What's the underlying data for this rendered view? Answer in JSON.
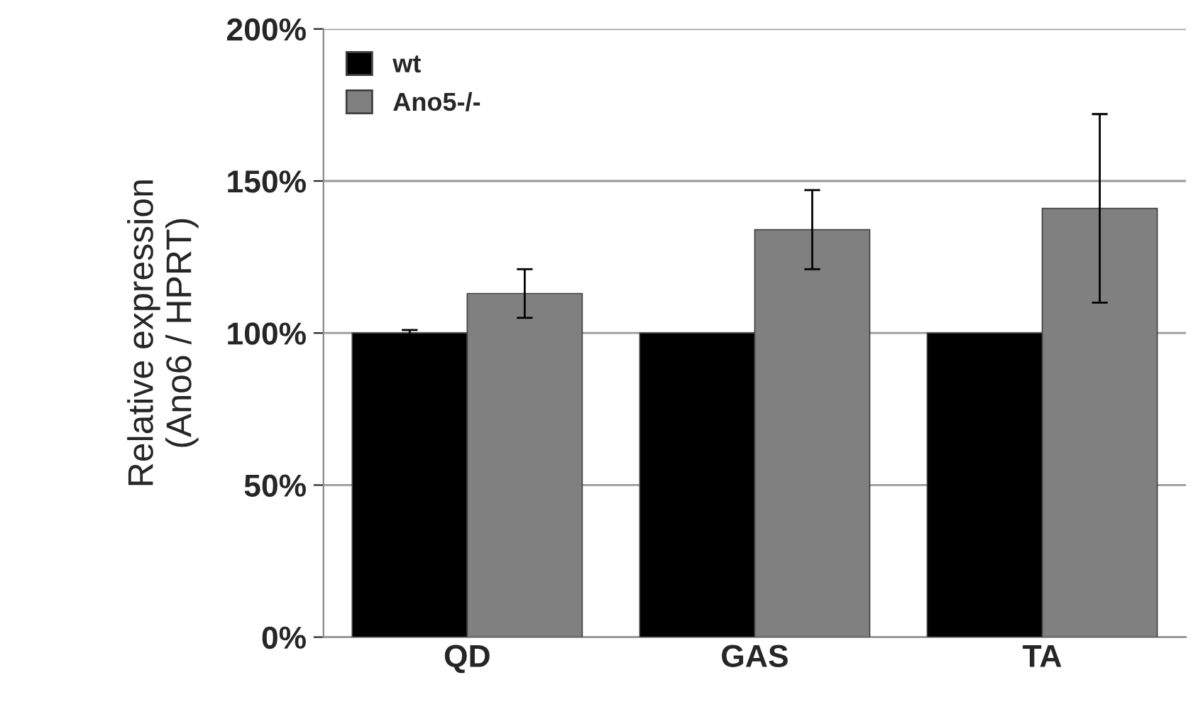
{
  "chart_data": {
    "type": "bar",
    "ylabel": "Relative expression\n(Ano6 / HPRT)",
    "categories": [
      "QD",
      "GAS",
      "TA"
    ],
    "series": [
      {
        "name": "wt",
        "color": "#000000",
        "values": [
          100,
          100,
          100
        ],
        "errors": [
          1,
          null,
          null
        ]
      },
      {
        "name": "Ano5-/-",
        "color": "#808080",
        "values": [
          113,
          134,
          141
        ],
        "errors": [
          8,
          13,
          31
        ]
      }
    ],
    "ylim": [
      0,
      200
    ],
    "yticks": [
      {
        "value": 0,
        "label": "0%"
      },
      {
        "value": 50,
        "label": "50%"
      },
      {
        "value": 100,
        "label": "100%"
      },
      {
        "value": 150,
        "label": "150%"
      },
      {
        "value": 200,
        "label": "200%"
      }
    ],
    "grid": "y",
    "legend": "top left"
  }
}
